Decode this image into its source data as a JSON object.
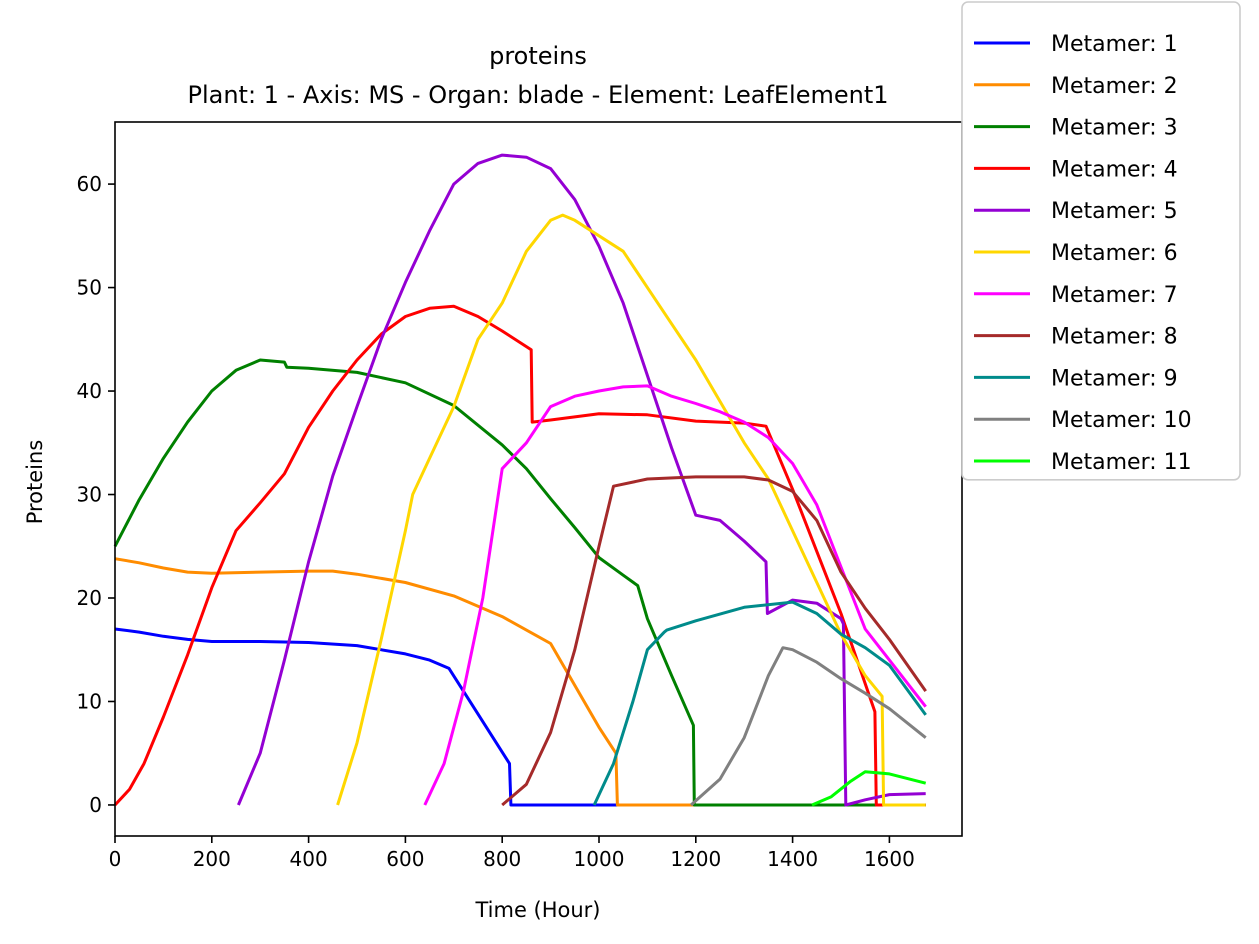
{
  "chart_data": {
    "type": "line",
    "title": "proteins",
    "subtitle": "Plant: 1 - Axis: MS - Organ: blade - Element: LeafElement1",
    "xlabel": "Time (Hour)",
    "ylabel": "Proteins",
    "xlim": [
      0,
      1750
    ],
    "ylim": [
      -3,
      66
    ],
    "xticks": [
      0,
      200,
      400,
      600,
      800,
      1000,
      1200,
      1400,
      1600
    ],
    "yticks": [
      0,
      10,
      20,
      30,
      40,
      50,
      60
    ],
    "grid": false,
    "legend_position": "upper-right outside",
    "series": [
      {
        "name": "Metamer: 1",
        "color": "#0000ff",
        "x": [
          0,
          50,
          100,
          150,
          200,
          300,
          400,
          500,
          600,
          650,
          690,
          815,
          818,
          1675
        ],
        "y": [
          17,
          16.7,
          16.3,
          16.0,
          15.8,
          15.8,
          15.7,
          15.4,
          14.6,
          14.0,
          13.2,
          4.0,
          0,
          0
        ]
      },
      {
        "name": "Metamer: 2",
        "color": "#ff8c00",
        "x": [
          0,
          50,
          100,
          150,
          200,
          300,
          400,
          450,
          500,
          600,
          700,
          800,
          900,
          1000,
          1035,
          1038,
          1675
        ],
        "y": [
          23.8,
          23.4,
          22.9,
          22.5,
          22.4,
          22.5,
          22.6,
          22.6,
          22.3,
          21.5,
          20.2,
          18.2,
          15.6,
          7.5,
          5.0,
          0,
          0
        ]
      },
      {
        "name": "Metamer: 3",
        "color": "#008000",
        "x": [
          0,
          50,
          100,
          150,
          200,
          250,
          300,
          350,
          355,
          400,
          500,
          600,
          700,
          800,
          850,
          900,
          950,
          1000,
          1050,
          1080,
          1100,
          1150,
          1195,
          1197,
          1675
        ],
        "y": [
          25,
          29.5,
          33.5,
          37,
          40,
          42,
          43,
          42.8,
          42.3,
          42.2,
          41.8,
          40.8,
          38.6,
          34.8,
          32.5,
          29.6,
          26.8,
          23.9,
          22.2,
          21.2,
          18.0,
          12.5,
          7.7,
          0,
          0
        ]
      },
      {
        "name": "Metamer: 4",
        "color": "#ff0000",
        "x": [
          0,
          30,
          60,
          100,
          150,
          200,
          250,
          300,
          350,
          400,
          450,
          500,
          550,
          600,
          650,
          700,
          750,
          800,
          860,
          862,
          900,
          1000,
          1100,
          1200,
          1300,
          1345,
          1400,
          1450,
          1500,
          1570,
          1573,
          1675
        ],
        "y": [
          0,
          1.5,
          4.0,
          8.5,
          14.5,
          21,
          26.5,
          29.2,
          32,
          36.5,
          40,
          43,
          45.5,
          47.2,
          48,
          48.2,
          47.2,
          45.8,
          44,
          37,
          37.2,
          37.8,
          37.7,
          37.1,
          36.9,
          36.6,
          30.5,
          24.5,
          18.5,
          9.0,
          0,
          0
        ]
      },
      {
        "name": "Metamer: 5",
        "color": "#9400d3",
        "x": [
          255,
          300,
          350,
          400,
          450,
          500,
          550,
          600,
          650,
          700,
          750,
          800,
          850,
          900,
          950,
          1000,
          1050,
          1100,
          1150,
          1200,
          1250,
          1300,
          1345,
          1348,
          1400,
          1450,
          1500,
          1505,
          1510,
          1550,
          1600,
          1675
        ],
        "y": [
          0,
          5.0,
          14,
          23.5,
          31.8,
          38.5,
          45,
          50.5,
          55.5,
          60,
          62,
          62.8,
          62.6,
          61.5,
          58.5,
          54,
          48.5,
          41.5,
          34.5,
          28,
          27.5,
          25.5,
          23.5,
          18.5,
          19.8,
          19.5,
          18.0,
          17.5,
          0,
          0.5,
          1.0,
          1.1
        ]
      },
      {
        "name": "Metamer: 6",
        "color": "#ffd700",
        "x": [
          460,
          500,
          550,
          600,
          615,
          650,
          700,
          750,
          800,
          850,
          900,
          925,
          950,
          1000,
          1050,
          1100,
          1150,
          1200,
          1250,
          1300,
          1350,
          1400,
          1450,
          1500,
          1550,
          1585,
          1588,
          1675
        ],
        "y": [
          0,
          6,
          16,
          26.5,
          30,
          33.5,
          38.5,
          45,
          48.5,
          53.5,
          56.5,
          57,
          56.5,
          55,
          53.5,
          50,
          46.5,
          43,
          39,
          35,
          31.5,
          26.5,
          21.5,
          16.5,
          12.5,
          10.5,
          0,
          0
        ]
      },
      {
        "name": "Metamer: 7",
        "color": "#ff00ff",
        "x": [
          640,
          680,
          720,
          760,
          800,
          850,
          900,
          950,
          1000,
          1050,
          1100,
          1150,
          1200,
          1250,
          1300,
          1350,
          1400,
          1450,
          1500,
          1550,
          1600,
          1675
        ],
        "y": [
          0,
          4,
          11,
          20,
          32.5,
          35,
          38.5,
          39.5,
          40,
          40.4,
          40.5,
          39.5,
          38.8,
          38,
          37,
          35.5,
          33,
          29,
          23,
          17,
          14,
          9.5
        ]
      },
      {
        "name": "Metamer: 8",
        "color": "#a52a2a",
        "x": [
          800,
          850,
          900,
          950,
          1000,
          1030,
          1100,
          1200,
          1300,
          1350,
          1400,
          1450,
          1500,
          1550,
          1600,
          1675
        ],
        "y": [
          0,
          2,
          7,
          15,
          25,
          30.8,
          31.5,
          31.7,
          31.7,
          31.4,
          30.3,
          27.5,
          22.5,
          19,
          16,
          11
        ]
      },
      {
        "name": "Metamer: 9",
        "color": "#008b8b",
        "x": [
          990,
          1030,
          1070,
          1100,
          1135,
          1140,
          1200,
          1300,
          1400,
          1450,
          1500,
          1550,
          1600,
          1675
        ],
        "y": [
          0,
          4,
          10,
          15,
          16.7,
          16.9,
          17.8,
          19.1,
          19.6,
          18.5,
          16.5,
          15.2,
          13.5,
          8.7
        ]
      },
      {
        "name": "Metamer: 10",
        "color": "#808080",
        "x": [
          1190,
          1250,
          1300,
          1350,
          1380,
          1400,
          1450,
          1500,
          1550,
          1600,
          1675
        ],
        "y": [
          0,
          2.5,
          6.5,
          12.5,
          15.2,
          15,
          13.8,
          12.2,
          10.8,
          9.3,
          6.5
        ]
      },
      {
        "name": "Metamer: 11",
        "color": "#00ff00",
        "x": [
          1440,
          1480,
          1520,
          1550,
          1600,
          1675
        ],
        "y": [
          0,
          0.8,
          2.3,
          3.2,
          3.0,
          2.1
        ]
      }
    ]
  }
}
